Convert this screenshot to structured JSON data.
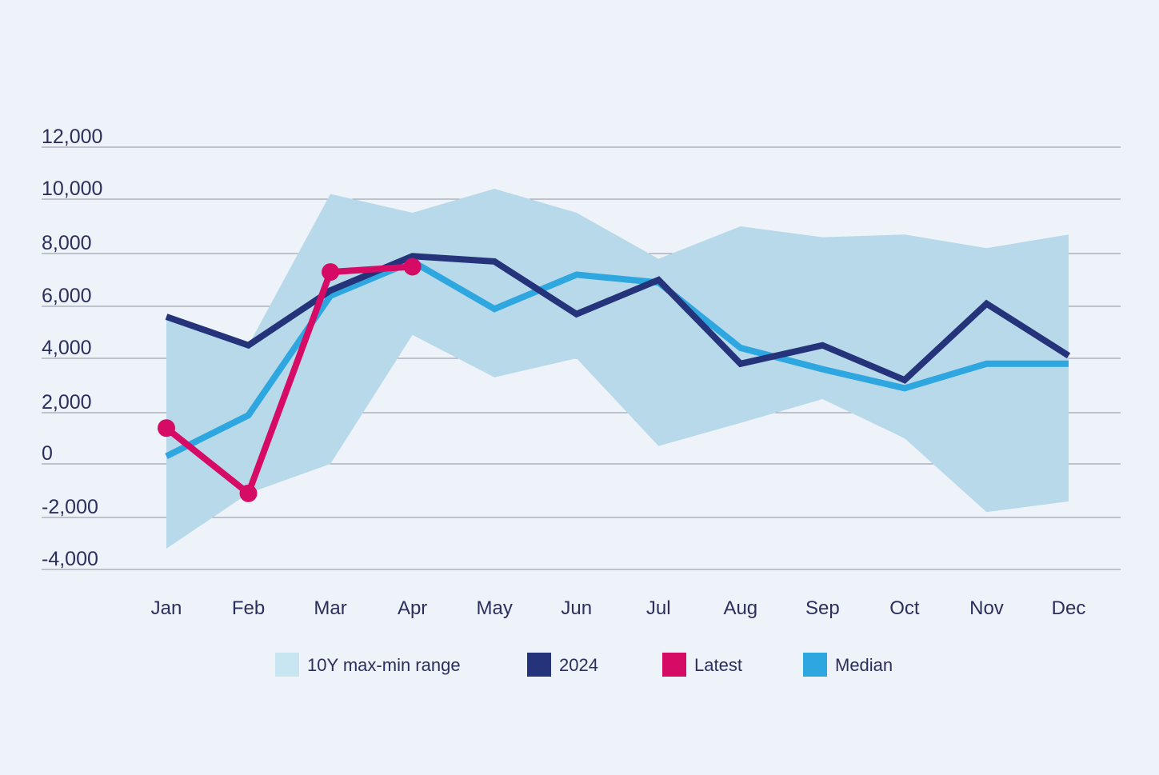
{
  "colors": {
    "background": "#eef2f9",
    "range": "#b7d9ea",
    "legend_range": "#c8e6f2",
    "series_2024": "#25337a",
    "latest": "#d60b66",
    "median": "#2ea7e0",
    "grid": "#8e93a0",
    "text": "#2a2f5c"
  },
  "chart_data": {
    "type": "line",
    "categories": [
      "Jan",
      "Feb",
      "Mar",
      "Apr",
      "May",
      "Jun",
      "Jul",
      "Aug",
      "Sep",
      "Oct",
      "Nov",
      "Dec"
    ],
    "y_ticks": [
      12000,
      10000,
      8000,
      6000,
      4000,
      2000,
      0,
      -2000,
      -4000
    ],
    "y_tick_labels": [
      "12,000",
      "10,000",
      "8,000",
      "6,000",
      "4,000",
      "2,000",
      "0",
      "-2,000",
      "-4,000"
    ],
    "ylim": [
      -4000,
      12000
    ],
    "range_band": {
      "name": "10Y max-min range",
      "max": [
        5500,
        4500,
        10200,
        9500,
        10400,
        9500,
        7800,
        9000,
        8600,
        8700,
        8200,
        8700
      ],
      "min": [
        -3200,
        -1100,
        0,
        4900,
        3300,
        4000,
        700,
        1600,
        2500,
        1000,
        -1800,
        -1400
      ]
    },
    "series": [
      {
        "name": "2024",
        "values": [
          5600,
          4500,
          6600,
          7900,
          7700,
          5700,
          7000,
          3800,
          4500,
          3200,
          6100,
          4100
        ]
      },
      {
        "name": "Latest",
        "values": [
          1400,
          -1100,
          7300,
          7500,
          null,
          null,
          null,
          null,
          null,
          null,
          null,
          null
        ]
      },
      {
        "name": "Median",
        "values": [
          300,
          1900,
          6400,
          7700,
          5900,
          7200,
          6900,
          4400,
          3600,
          2900,
          3800,
          3800
        ]
      }
    ],
    "legend": [
      "10Y max-min range",
      "2024",
      "Latest",
      "Median"
    ],
    "legend_position": "bottom-center"
  }
}
